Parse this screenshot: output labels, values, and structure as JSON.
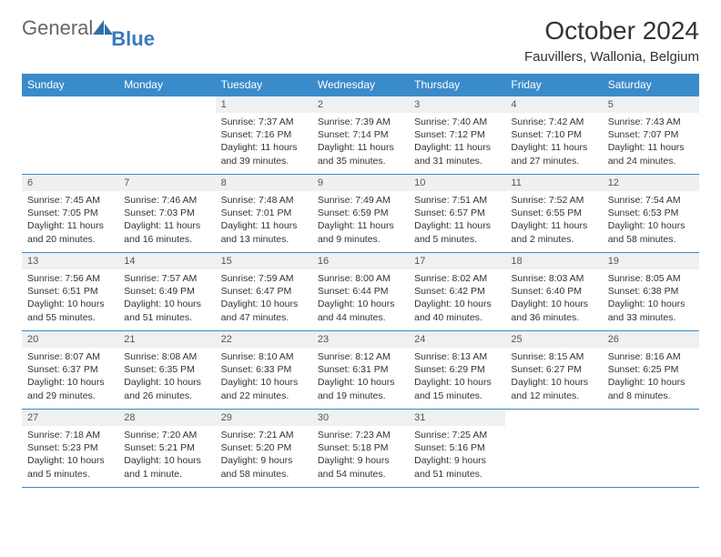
{
  "brand": {
    "part1": "General",
    "part2": "Blue"
  },
  "title": "October 2024",
  "location": "Fauvillers, Wallonia, Belgium",
  "colors": {
    "header_bg": "#3a8bc9",
    "header_text": "#ffffff",
    "daynum_bg": "#eef0f2",
    "border": "#3a8bc9",
    "text": "#333333",
    "logo_blue": "#3a7bbf"
  },
  "weekdays": [
    "Sunday",
    "Monday",
    "Tuesday",
    "Wednesday",
    "Thursday",
    "Friday",
    "Saturday"
  ],
  "weeks": [
    [
      {
        "empty": true
      },
      {
        "empty": true
      },
      {
        "n": "1",
        "sunrise": "Sunrise: 7:37 AM",
        "sunset": "Sunset: 7:16 PM",
        "daylight": "Daylight: 11 hours and 39 minutes."
      },
      {
        "n": "2",
        "sunrise": "Sunrise: 7:39 AM",
        "sunset": "Sunset: 7:14 PM",
        "daylight": "Daylight: 11 hours and 35 minutes."
      },
      {
        "n": "3",
        "sunrise": "Sunrise: 7:40 AM",
        "sunset": "Sunset: 7:12 PM",
        "daylight": "Daylight: 11 hours and 31 minutes."
      },
      {
        "n": "4",
        "sunrise": "Sunrise: 7:42 AM",
        "sunset": "Sunset: 7:10 PM",
        "daylight": "Daylight: 11 hours and 27 minutes."
      },
      {
        "n": "5",
        "sunrise": "Sunrise: 7:43 AM",
        "sunset": "Sunset: 7:07 PM",
        "daylight": "Daylight: 11 hours and 24 minutes."
      }
    ],
    [
      {
        "n": "6",
        "sunrise": "Sunrise: 7:45 AM",
        "sunset": "Sunset: 7:05 PM",
        "daylight": "Daylight: 11 hours and 20 minutes."
      },
      {
        "n": "7",
        "sunrise": "Sunrise: 7:46 AM",
        "sunset": "Sunset: 7:03 PM",
        "daylight": "Daylight: 11 hours and 16 minutes."
      },
      {
        "n": "8",
        "sunrise": "Sunrise: 7:48 AM",
        "sunset": "Sunset: 7:01 PM",
        "daylight": "Daylight: 11 hours and 13 minutes."
      },
      {
        "n": "9",
        "sunrise": "Sunrise: 7:49 AM",
        "sunset": "Sunset: 6:59 PM",
        "daylight": "Daylight: 11 hours and 9 minutes."
      },
      {
        "n": "10",
        "sunrise": "Sunrise: 7:51 AM",
        "sunset": "Sunset: 6:57 PM",
        "daylight": "Daylight: 11 hours and 5 minutes."
      },
      {
        "n": "11",
        "sunrise": "Sunrise: 7:52 AM",
        "sunset": "Sunset: 6:55 PM",
        "daylight": "Daylight: 11 hours and 2 minutes."
      },
      {
        "n": "12",
        "sunrise": "Sunrise: 7:54 AM",
        "sunset": "Sunset: 6:53 PM",
        "daylight": "Daylight: 10 hours and 58 minutes."
      }
    ],
    [
      {
        "n": "13",
        "sunrise": "Sunrise: 7:56 AM",
        "sunset": "Sunset: 6:51 PM",
        "daylight": "Daylight: 10 hours and 55 minutes."
      },
      {
        "n": "14",
        "sunrise": "Sunrise: 7:57 AM",
        "sunset": "Sunset: 6:49 PM",
        "daylight": "Daylight: 10 hours and 51 minutes."
      },
      {
        "n": "15",
        "sunrise": "Sunrise: 7:59 AM",
        "sunset": "Sunset: 6:47 PM",
        "daylight": "Daylight: 10 hours and 47 minutes."
      },
      {
        "n": "16",
        "sunrise": "Sunrise: 8:00 AM",
        "sunset": "Sunset: 6:44 PM",
        "daylight": "Daylight: 10 hours and 44 minutes."
      },
      {
        "n": "17",
        "sunrise": "Sunrise: 8:02 AM",
        "sunset": "Sunset: 6:42 PM",
        "daylight": "Daylight: 10 hours and 40 minutes."
      },
      {
        "n": "18",
        "sunrise": "Sunrise: 8:03 AM",
        "sunset": "Sunset: 6:40 PM",
        "daylight": "Daylight: 10 hours and 36 minutes."
      },
      {
        "n": "19",
        "sunrise": "Sunrise: 8:05 AM",
        "sunset": "Sunset: 6:38 PM",
        "daylight": "Daylight: 10 hours and 33 minutes."
      }
    ],
    [
      {
        "n": "20",
        "sunrise": "Sunrise: 8:07 AM",
        "sunset": "Sunset: 6:37 PM",
        "daylight": "Daylight: 10 hours and 29 minutes."
      },
      {
        "n": "21",
        "sunrise": "Sunrise: 8:08 AM",
        "sunset": "Sunset: 6:35 PM",
        "daylight": "Daylight: 10 hours and 26 minutes."
      },
      {
        "n": "22",
        "sunrise": "Sunrise: 8:10 AM",
        "sunset": "Sunset: 6:33 PM",
        "daylight": "Daylight: 10 hours and 22 minutes."
      },
      {
        "n": "23",
        "sunrise": "Sunrise: 8:12 AM",
        "sunset": "Sunset: 6:31 PM",
        "daylight": "Daylight: 10 hours and 19 minutes."
      },
      {
        "n": "24",
        "sunrise": "Sunrise: 8:13 AM",
        "sunset": "Sunset: 6:29 PM",
        "daylight": "Daylight: 10 hours and 15 minutes."
      },
      {
        "n": "25",
        "sunrise": "Sunrise: 8:15 AM",
        "sunset": "Sunset: 6:27 PM",
        "daylight": "Daylight: 10 hours and 12 minutes."
      },
      {
        "n": "26",
        "sunrise": "Sunrise: 8:16 AM",
        "sunset": "Sunset: 6:25 PM",
        "daylight": "Daylight: 10 hours and 8 minutes."
      }
    ],
    [
      {
        "n": "27",
        "sunrise": "Sunrise: 7:18 AM",
        "sunset": "Sunset: 5:23 PM",
        "daylight": "Daylight: 10 hours and 5 minutes."
      },
      {
        "n": "28",
        "sunrise": "Sunrise: 7:20 AM",
        "sunset": "Sunset: 5:21 PM",
        "daylight": "Daylight: 10 hours and 1 minute."
      },
      {
        "n": "29",
        "sunrise": "Sunrise: 7:21 AM",
        "sunset": "Sunset: 5:20 PM",
        "daylight": "Daylight: 9 hours and 58 minutes."
      },
      {
        "n": "30",
        "sunrise": "Sunrise: 7:23 AM",
        "sunset": "Sunset: 5:18 PM",
        "daylight": "Daylight: 9 hours and 54 minutes."
      },
      {
        "n": "31",
        "sunrise": "Sunrise: 7:25 AM",
        "sunset": "Sunset: 5:16 PM",
        "daylight": "Daylight: 9 hours and 51 minutes."
      },
      {
        "empty": true
      },
      {
        "empty": true
      }
    ]
  ]
}
